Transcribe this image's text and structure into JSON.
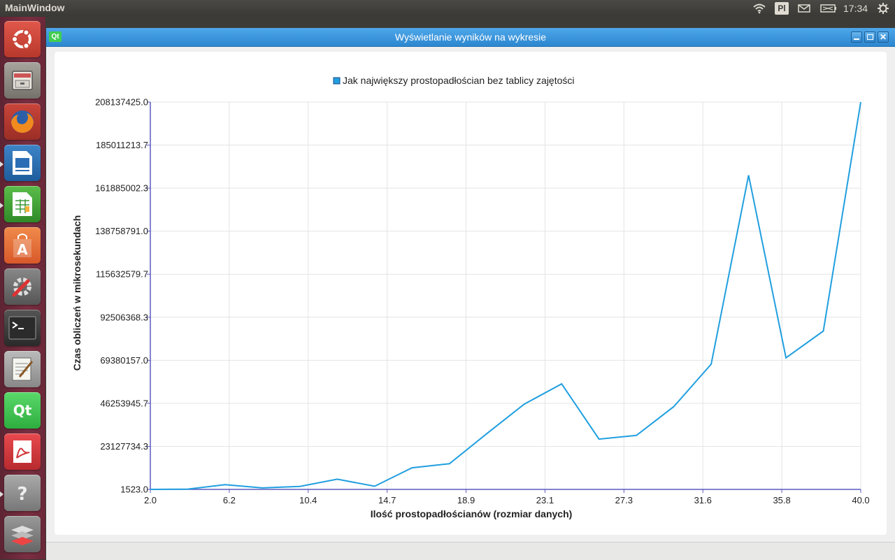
{
  "topbar": {
    "app_title": "MainWindow",
    "keyboard_layout": "Pl",
    "clock": "17:34"
  },
  "launcher": {
    "items": [
      {
        "name": "ubuntu-dash",
        "icon": "ubuntu-logo-icon",
        "color": "#c8463a"
      },
      {
        "name": "files",
        "icon": "file-cabinet-icon",
        "color": "#8a8682"
      },
      {
        "name": "firefox",
        "icon": "firefox-icon",
        "color": "#e36b1f"
      },
      {
        "name": "libreoffice-impress",
        "icon": "presentation-icon",
        "color": "#2a6fb5"
      },
      {
        "name": "libreoffice-calc",
        "icon": "spreadsheet-icon",
        "color": "#3a9a3a"
      },
      {
        "name": "software-center",
        "icon": "shopping-bag-icon",
        "color": "#e9743a"
      },
      {
        "name": "system-settings",
        "icon": "gear-wrench-icon",
        "color": "#6a6a6a"
      },
      {
        "name": "terminal",
        "icon": "terminal-icon",
        "color": "#3a3a3a"
      },
      {
        "name": "text-editor",
        "icon": "notepad-icon",
        "color": "#9a9a9a"
      },
      {
        "name": "qt-creator",
        "icon": "qt-icon",
        "color": "#41cd52"
      },
      {
        "name": "pdf-viewer",
        "icon": "pdf-icon",
        "color": "#d0353a"
      },
      {
        "name": "help",
        "icon": "question-mark-icon",
        "color": "#8e8e8e"
      },
      {
        "name": "workspace-switcher",
        "icon": "stack-icon",
        "color": "#7e7e7e"
      }
    ]
  },
  "window": {
    "title": "Wyświetlanie wyników na wykresie",
    "qt_badge": "Qt"
  },
  "chart_data": {
    "type": "line",
    "legend": "Jak największy prostopadłościan bez tablicy zajętości",
    "legend_position": "top-center",
    "xlabel": "Ilość prostopadłościanów (rozmiar danych)",
    "ylabel": "Czas obliczeń w mikrosekundach",
    "xlim": [
      2.0,
      40.0
    ],
    "ylim": [
      1523.0,
      208137425.0
    ],
    "x_ticks": [
      "2.0",
      "6.2",
      "10.4",
      "14.7",
      "18.9",
      "23.1",
      "27.3",
      "31.6",
      "35.8",
      "40.0"
    ],
    "y_ticks": [
      "1523.0",
      "23127734.3",
      "46253945.7",
      "69380157.0",
      "92506368.3",
      "115632579.7",
      "138758791.0",
      "161885002.3",
      "185011213.7",
      "208137425.0"
    ],
    "grid": true,
    "line_color": "#209fdf",
    "series": [
      {
        "name": "Jak największy prostopadłościan bez tablicy zajętości",
        "x": [
          2,
          4,
          6,
          8,
          10,
          12,
          14,
          16,
          18,
          20,
          22,
          24,
          26,
          28,
          30,
          32,
          34,
          36,
          38,
          40
        ],
        "y": [
          1523,
          150000,
          2500000,
          800000,
          1600000,
          5500000,
          1700000,
          11600000,
          13800000,
          30000000,
          45800000,
          56700000,
          27000000,
          29000000,
          44500000,
          67300000,
          168800000,
          70700000,
          85100000,
          208137425
        ]
      }
    ]
  }
}
